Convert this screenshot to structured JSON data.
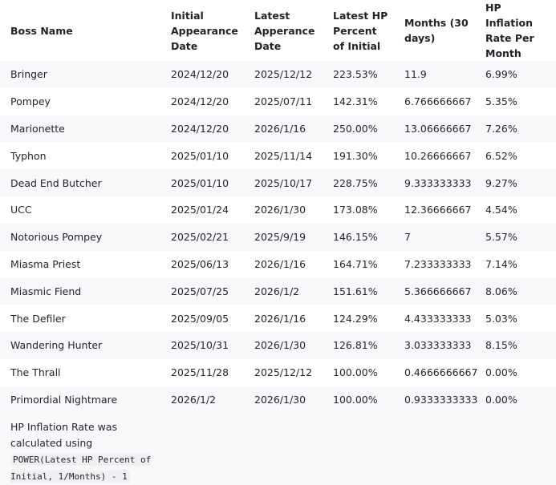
{
  "table": {
    "header": [
      "Boss Name",
      "Initial Appearance Date",
      "Latest Apperance Date",
      "Latest HP Percent of Initial",
      "Months (30 days)",
      "HP Inflation Rate Per Month"
    ],
    "rows": [
      [
        "Bringer",
        "2024/12/20",
        "2025/12/12",
        "223.53%",
        "11.9",
        "6.99%"
      ],
      [
        "Pompey",
        "2024/12/20",
        "2025/07/11",
        "142.31%",
        "6.766666667",
        "5.35%"
      ],
      [
        "Marionette",
        "2024/12/20",
        "2026/1/16",
        "250.00%",
        "13.06666667",
        "7.26%"
      ],
      [
        "Typhon",
        "2025/01/10",
        "2025/11/14",
        "191.30%",
        "10.26666667",
        "6.52%"
      ],
      [
        "Dead End Butcher",
        "2025/01/10",
        "2025/10/17",
        "228.75%",
        "9.333333333",
        "9.27%"
      ],
      [
        "UCC",
        "2025/01/24",
        "2026/1/30",
        "173.08%",
        "12.36666667",
        "4.54%"
      ],
      [
        "Notorious Pompey",
        "2025/02/21",
        "2025/9/19",
        "146.15%",
        "7",
        "5.57%"
      ],
      [
        "Miasma Priest",
        "2025/06/13",
        "2026/1/16",
        "164.71%",
        "7.233333333",
        "7.14%"
      ],
      [
        "Miasmic Fiend",
        "2025/07/25",
        "2026/1/2",
        "151.61%",
        "5.366666667",
        "8.06%"
      ],
      [
        "The Defiler",
        "2025/09/05",
        "2026/1/16",
        "124.29%",
        "4.433333333",
        "5.03%"
      ],
      [
        "Wandering Hunter",
        "2025/10/31",
        "2026/1/30",
        "126.81%",
        "3.033333333",
        "8.15%"
      ],
      [
        "The Thrall",
        "2025/11/28",
        "2025/12/12",
        "100.00%",
        "0.4666666667",
        "0.00%"
      ],
      [
        "Primordial Nightmare",
        "2026/1/2",
        "2026/1/30",
        "100.00%",
        "0.9333333333",
        "0.00%"
      ]
    ],
    "note": {
      "text": "HP Inflation Rate was calculated using",
      "code": "POWER(Latest HP Percent of Initial, 1/Months) - 1"
    }
  }
}
